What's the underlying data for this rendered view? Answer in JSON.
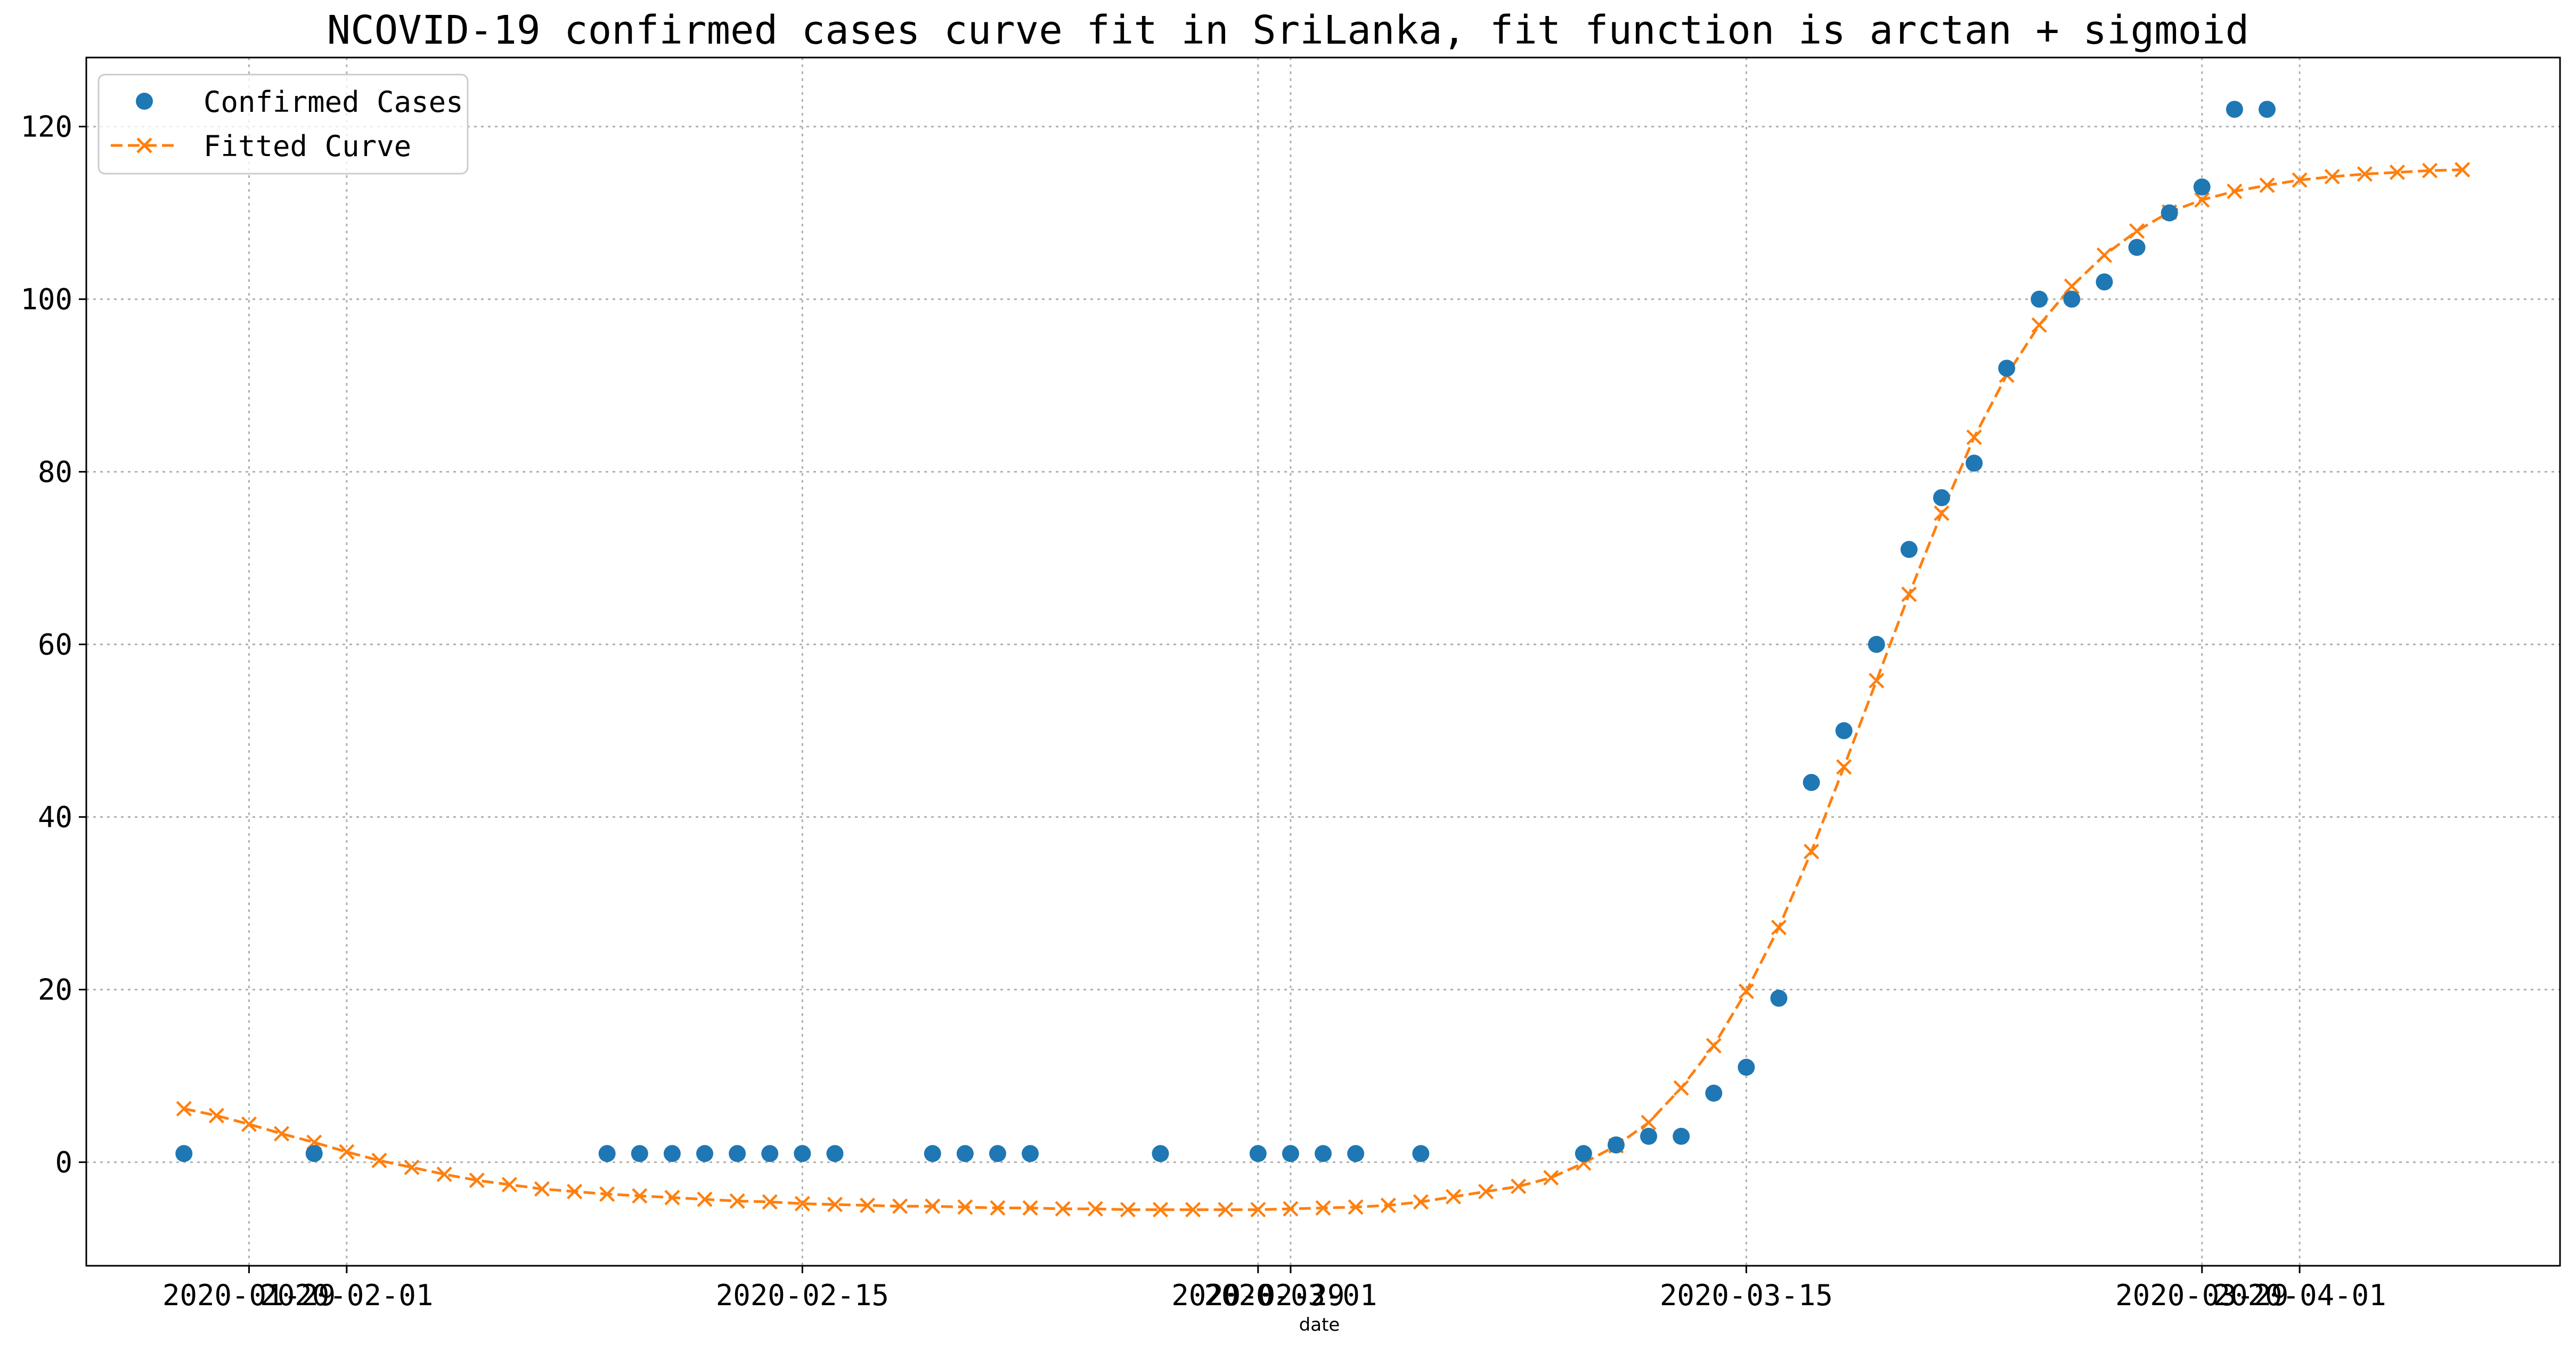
{
  "chart_data": {
    "type": "scatter",
    "title": "NCOVID-19 confirmed cases curve fit in SriLanka, fit function is arctan + sigmoid",
    "xlabel": "date",
    "ylabel": "",
    "grid": true,
    "legend_position": "top-left",
    "xlim": [
      "2020-01-24",
      "2020-04-09"
    ],
    "ylim": [
      -12,
      128
    ],
    "x_ticks": [
      {
        "date": "2020-01-29",
        "label": "2020-01-29"
      },
      {
        "date": "2020-02-01",
        "label": "2020-02-01"
      },
      {
        "date": "2020-02-15",
        "label": "2020-02-15"
      },
      {
        "date": "2020-02-29",
        "label": "2020-02-29"
      },
      {
        "date": "2020-03-01",
        "label": "2020-03-01"
      },
      {
        "date": "2020-03-15",
        "label": "2020-03-15"
      },
      {
        "date": "2020-03-29",
        "label": "2020-03-29"
      },
      {
        "date": "2020-04-01",
        "label": "2020-04-01"
      }
    ],
    "y_ticks": [
      0,
      20,
      40,
      60,
      80,
      100,
      120
    ],
    "series": [
      {
        "name": "Confirmed Cases",
        "kind": "points",
        "color": "#1f77b4",
        "points": [
          [
            "2020-01-27",
            1
          ],
          [
            "2020-01-31",
            1
          ],
          [
            "2020-02-09",
            1
          ],
          [
            "2020-02-10",
            1
          ],
          [
            "2020-02-11",
            1
          ],
          [
            "2020-02-12",
            1
          ],
          [
            "2020-02-13",
            1
          ],
          [
            "2020-02-14",
            1
          ],
          [
            "2020-02-15",
            1
          ],
          [
            "2020-02-16",
            1
          ],
          [
            "2020-02-19",
            1
          ],
          [
            "2020-02-20",
            1
          ],
          [
            "2020-02-21",
            1
          ],
          [
            "2020-02-22",
            1
          ],
          [
            "2020-02-26",
            1
          ],
          [
            "2020-02-29",
            1
          ],
          [
            "2020-03-01",
            1
          ],
          [
            "2020-03-02",
            1
          ],
          [
            "2020-03-03",
            1
          ],
          [
            "2020-03-05",
            1
          ],
          [
            "2020-03-10",
            1
          ],
          [
            "2020-03-11",
            2
          ],
          [
            "2020-03-12",
            3
          ],
          [
            "2020-03-13",
            3
          ],
          [
            "2020-03-14",
            8
          ],
          [
            "2020-03-15",
            11
          ],
          [
            "2020-03-16",
            19
          ],
          [
            "2020-03-17",
            44
          ],
          [
            "2020-03-18",
            50
          ],
          [
            "2020-03-19",
            60
          ],
          [
            "2020-03-20",
            71
          ],
          [
            "2020-03-21",
            77
          ],
          [
            "2020-03-22",
            81
          ],
          [
            "2020-03-23",
            92
          ],
          [
            "2020-03-24",
            100
          ],
          [
            "2020-03-25",
            100
          ],
          [
            "2020-03-26",
            102
          ],
          [
            "2020-03-27",
            106
          ],
          [
            "2020-03-28",
            110
          ],
          [
            "2020-03-29",
            113
          ],
          [
            "2020-03-30",
            122
          ],
          [
            "2020-03-31",
            122
          ]
        ]
      },
      {
        "name": "Fitted Curve",
        "kind": "dashed-line-x-markers",
        "color": "#ff7f0e",
        "start_date": "2020-01-27",
        "values": [
          6.2,
          5.4,
          4.4,
          3.3,
          2.3,
          1.2,
          0.2,
          -0.6,
          -1.4,
          -2.1,
          -2.6,
          -3.1,
          -3.4,
          -3.7,
          -3.9,
          -4.1,
          -4.3,
          -4.5,
          -4.6,
          -4.8,
          -4.9,
          -5.0,
          -5.1,
          -5.1,
          -5.2,
          -5.3,
          -5.3,
          -5.4,
          -5.4,
          -5.5,
          -5.5,
          -5.5,
          -5.5,
          -5.5,
          -5.4,
          -5.3,
          -5.2,
          -5.0,
          -4.6,
          -4.0,
          -3.4,
          -2.8,
          -1.8,
          -0.1,
          1.9,
          4.6,
          8.6,
          13.5,
          19.8,
          27.2,
          36.0,
          45.8,
          55.8,
          65.8,
          75.2,
          84.0,
          91.2,
          97.0,
          101.5,
          105.1,
          107.9,
          110.1,
          111.5,
          112.5,
          113.2,
          113.8,
          114.2,
          114.5,
          114.7,
          114.9,
          115.0
        ]
      }
    ]
  }
}
